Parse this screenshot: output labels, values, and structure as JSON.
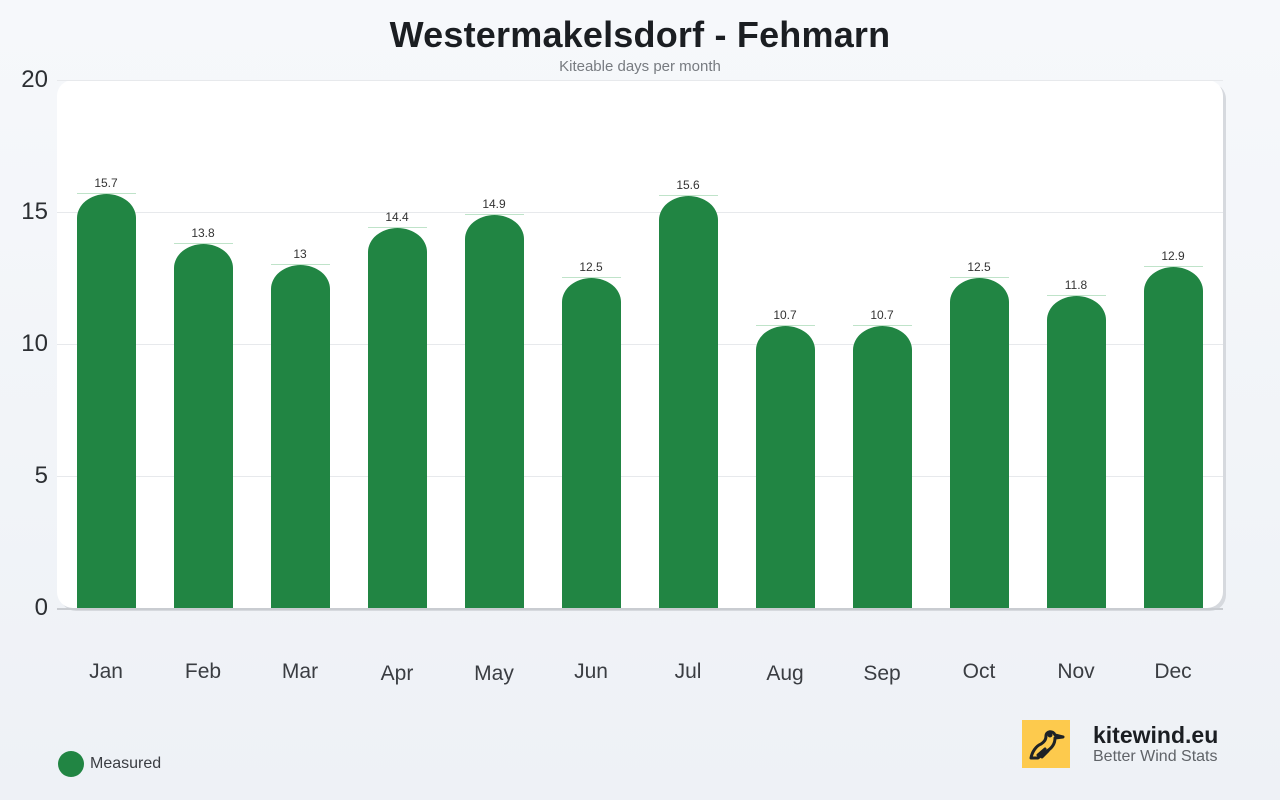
{
  "header": {
    "title": "Westermakelsdorf - Fehmarn",
    "subtitle": "Kiteable days per month"
  },
  "colors": {
    "bar": "#218543",
    "brand_logo_bg": "#fdca4d"
  },
  "legend": {
    "items": [
      {
        "label": "Measured",
        "color": "#218543"
      }
    ]
  },
  "brand": {
    "name": "kitewind.eu",
    "tagline": "Better Wind Stats",
    "logo_icon": "bird-icon"
  },
  "axis": {
    "y_ticks": [
      "20",
      "15",
      "10",
      "5",
      "0"
    ],
    "x_ticks": [
      "Jan",
      "Feb",
      "Mar",
      "Apr",
      "May",
      "Jun",
      "Jul",
      "Aug",
      "Sep",
      "Oct",
      "Nov",
      "Dec"
    ]
  },
  "bars": [
    {
      "month": "Jan",
      "value": 15.7,
      "label": "15.7"
    },
    {
      "month": "Feb",
      "value": 13.8,
      "label": "13.8"
    },
    {
      "month": "Mar",
      "value": 13,
      "label": "13"
    },
    {
      "month": "Apr",
      "value": 14.4,
      "label": "14.4"
    },
    {
      "month": "May",
      "value": 14.9,
      "label": "14.9"
    },
    {
      "month": "Jun",
      "value": 12.5,
      "label": "12.5"
    },
    {
      "month": "Jul",
      "value": 15.6,
      "label": "15.6"
    },
    {
      "month": "Aug",
      "value": 10.7,
      "label": "10.7"
    },
    {
      "month": "Sep",
      "value": 10.7,
      "label": "10.7"
    },
    {
      "month": "Oct",
      "value": 12.5,
      "label": "12.5"
    },
    {
      "month": "Nov",
      "value": 11.8,
      "label": "11.8"
    },
    {
      "month": "Dec",
      "value": 12.9,
      "label": "12.9"
    }
  ],
  "chart_data": {
    "type": "bar",
    "title": "Westermakelsdorf - Fehmarn",
    "subtitle": "Kiteable days per month",
    "categories": [
      "Jan",
      "Feb",
      "Mar",
      "Apr",
      "May",
      "Jun",
      "Jul",
      "Aug",
      "Sep",
      "Oct",
      "Nov",
      "Dec"
    ],
    "series": [
      {
        "name": "Measured",
        "color": "#218543",
        "values": [
          15.7,
          13.8,
          13,
          14.4,
          14.9,
          12.5,
          15.6,
          10.7,
          10.7,
          12.5,
          11.8,
          12.9
        ]
      }
    ],
    "xlabel": "",
    "ylabel": "",
    "ylim": [
      0,
      20
    ],
    "yticks": [
      0,
      5,
      10,
      15,
      20
    ],
    "grid": true,
    "data_labels": true,
    "legend_position": "bottom-left"
  }
}
